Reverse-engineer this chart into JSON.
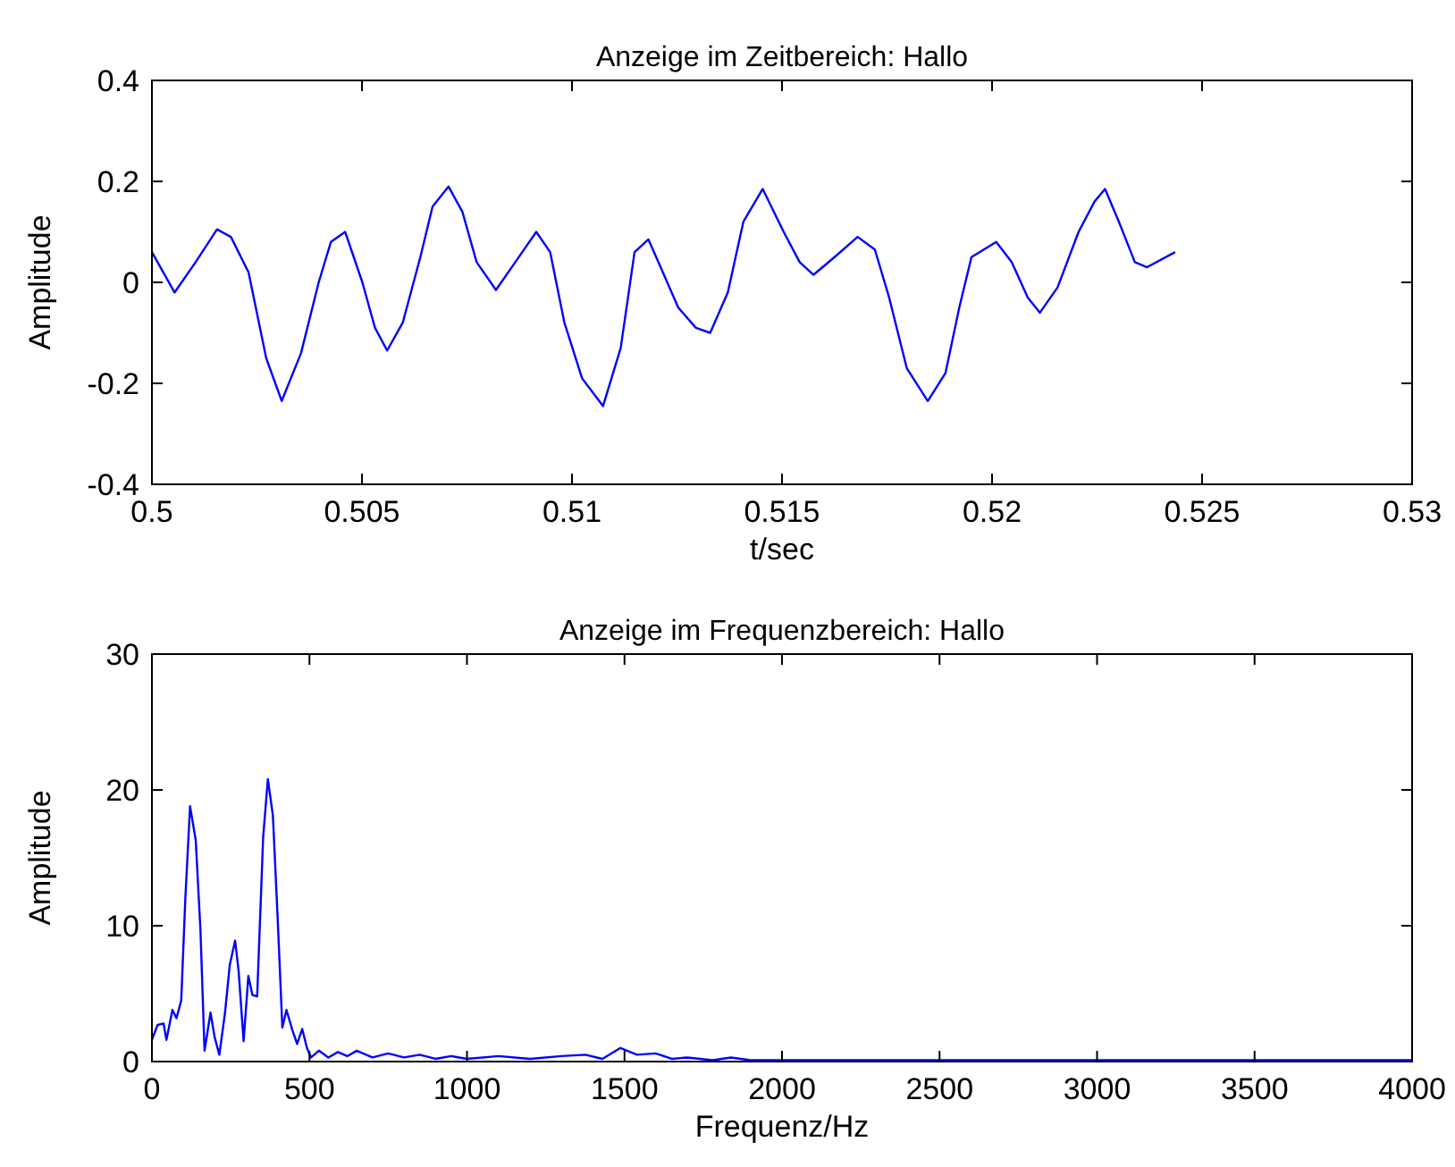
{
  "chart_data": [
    {
      "type": "line",
      "title": "Anzeige im Zeitbereich: Hallo",
      "xlabel": "t/sec",
      "ylabel": "Amplitude",
      "xlim": [
        0.5,
        0.53
      ],
      "ylim": [
        -0.4,
        0.4
      ],
      "xticks": [
        0.5,
        0.505,
        0.51,
        0.515,
        0.52,
        0.525,
        0.53
      ],
      "yticks": [
        -0.4,
        -0.2,
        0,
        0.2,
        0.4
      ],
      "grid": false,
      "line_style": "solid",
      "series": [
        {
          "color": "#0000ff",
          "x": [
            0.5,
            0.50054,
            0.50104,
            0.50155,
            0.50188,
            0.5023,
            0.50272,
            0.50309,
            0.50355,
            0.50397,
            0.50426,
            0.5046,
            0.50501,
            0.50531,
            0.5056,
            0.50597,
            0.50639,
            0.50668,
            0.50706,
            0.50739,
            0.50773,
            0.50819,
            0.50865,
            0.50915,
            0.50948,
            0.50982,
            0.51024,
            0.51074,
            0.51116,
            0.51149,
            0.51182,
            0.51211,
            0.51253,
            0.51295,
            0.51329,
            0.51371,
            0.51408,
            0.51454,
            0.51504,
            0.51542,
            0.51575,
            0.51625,
            0.5168,
            0.51721,
            0.51755,
            0.51797,
            0.51847,
            0.51889,
            0.51922,
            0.51951,
            0.5201,
            0.52047,
            0.52085,
            0.52114,
            0.52156,
            0.52206,
            0.52244,
            0.52269,
            0.52302,
            0.5234,
            0.52369,
            0.52436
          ],
          "values": [
            0.06,
            -0.02,
            0.04,
            0.105,
            0.09,
            0.02,
            -0.15,
            -0.235,
            -0.14,
            0.0,
            0.08,
            0.1,
            0.0,
            -0.09,
            -0.135,
            -0.08,
            0.05,
            0.15,
            0.19,
            0.14,
            0.04,
            -0.015,
            0.04,
            0.1,
            0.06,
            -0.08,
            -0.19,
            -0.245,
            -0.13,
            0.06,
            0.085,
            0.03,
            -0.05,
            -0.09,
            -0.1,
            -0.02,
            0.12,
            0.185,
            0.1,
            0.04,
            0.015,
            0.05,
            0.09,
            0.065,
            -0.03,
            -0.17,
            -0.235,
            -0.18,
            -0.05,
            0.05,
            0.08,
            0.04,
            -0.03,
            -0.06,
            -0.01,
            0.1,
            0.16,
            0.185,
            0.12,
            0.04,
            0.03,
            0.06
          ]
        }
      ]
    },
    {
      "type": "line",
      "title": "Anzeige im Frequenzbereich: Hallo",
      "xlabel": "Frequenz/Hz",
      "ylabel": "Amplitude",
      "xlim": [
        0,
        4000
      ],
      "ylim": [
        0,
        30
      ],
      "xticks": [
        0,
        500,
        1000,
        1500,
        2000,
        2500,
        3000,
        3500,
        4000
      ],
      "yticks": [
        0,
        10,
        20,
        30
      ],
      "grid": false,
      "line_style": "solid",
      "series": [
        {
          "color": "#0000ff",
          "x": [
            0,
            18,
            37,
            46,
            65,
            78,
            93,
            106,
            121,
            139,
            154,
            167,
            186,
            199,
            214,
            232,
            247,
            264,
            275,
            291,
            306,
            319,
            334,
            353,
            368,
            384,
            399,
            414,
            427,
            446,
            461,
            477,
            492,
            505,
            530,
            560,
            590,
            620,
            650,
            700,
            750,
            800,
            850,
            900,
            950,
            1000,
            1100,
            1200,
            1300,
            1376,
            1430,
            1487,
            1540,
            1599,
            1650,
            1700,
            1780,
            1838,
            1900,
            2000,
            2300,
            2600,
            3000,
            3400,
            3700,
            4000
          ],
          "values": [
            1.6,
            2.7,
            2.8,
            1.6,
            3.8,
            3.2,
            4.5,
            12,
            18.8,
            16.3,
            9.7,
            0.8,
            3.6,
            1.8,
            0.5,
            3.6,
            7.1,
            8.9,
            6.7,
            1.5,
            6.3,
            4.9,
            4.8,
            16.5,
            20.8,
            18.1,
            10.6,
            2.5,
            3.8,
            2.3,
            1.3,
            2.4,
            1.0,
            0.3,
            0.8,
            0.3,
            0.7,
            0.4,
            0.8,
            0.3,
            0.6,
            0.3,
            0.5,
            0.2,
            0.4,
            0.2,
            0.4,
            0.2,
            0.4,
            0.5,
            0.2,
            1.0,
            0.5,
            0.6,
            0.2,
            0.3,
            0.1,
            0.3,
            0.1,
            0.1,
            0.1,
            0.1,
            0.1,
            0.1,
            0.1,
            0.1
          ]
        }
      ]
    }
  ]
}
